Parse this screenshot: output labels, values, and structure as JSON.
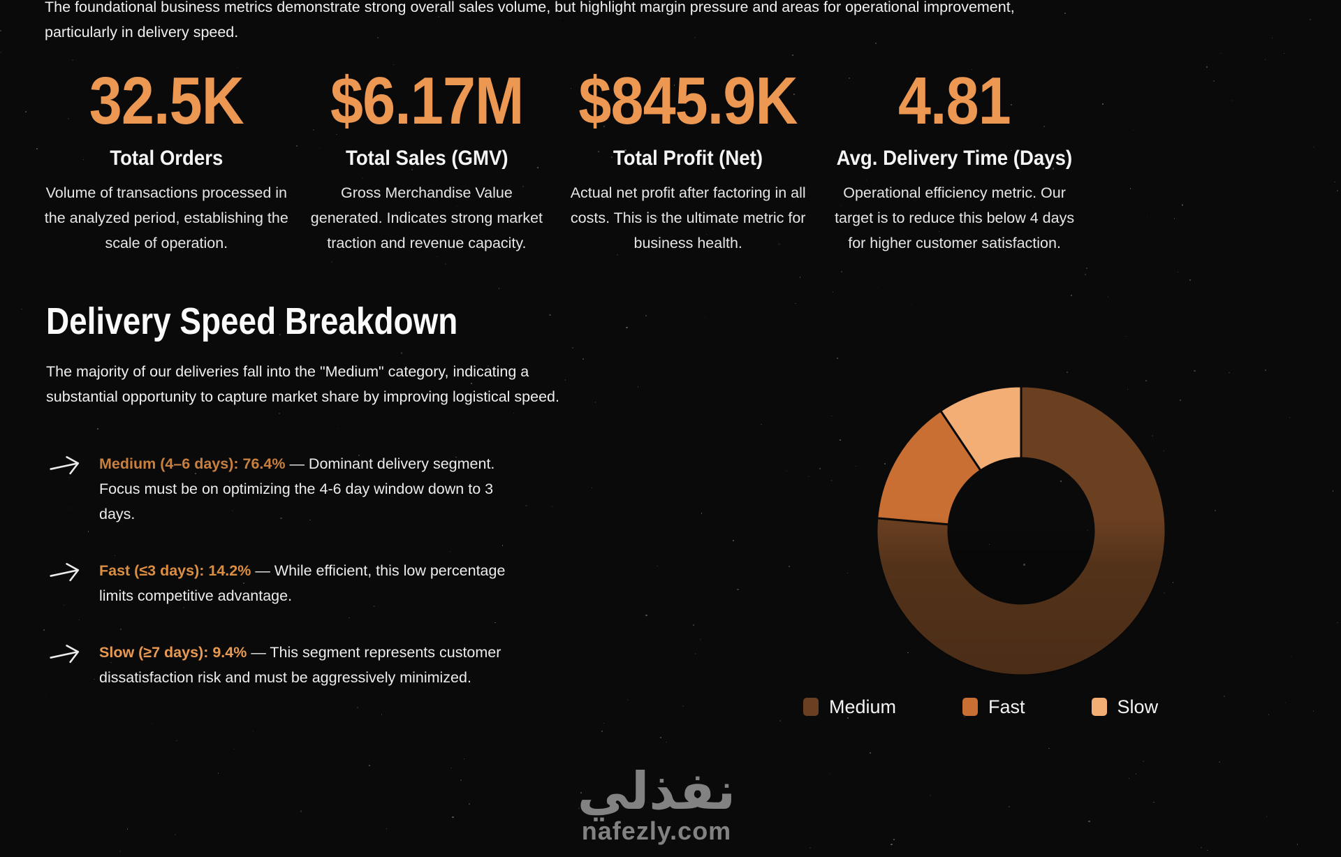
{
  "page": {
    "background": "#0a0a0b",
    "text_color": "#ededed"
  },
  "intro": {
    "text": "The foundational business metrics demonstrate strong overall sales volume, but highlight margin pressure and areas for operational improvement, particularly in delivery speed."
  },
  "accent": {
    "kpi_number_color": "#ec9853"
  },
  "kpis": [
    {
      "value": "32.5K",
      "label": "Total Orders",
      "description": "Volume of transactions processed in the analyzed period, establishing the scale of operation."
    },
    {
      "value": "$6.17M",
      "label": "Total Sales (GMV)",
      "description": "Gross Merchandise Value generated. Indicates strong market traction and revenue capacity."
    },
    {
      "value": "$845.9K",
      "label": "Total Profit (Net)",
      "description": "Actual net profit after factoring in all costs. This is the ultimate metric for business health."
    },
    {
      "value": "4.81",
      "label": "Avg. Delivery Time (Days)",
      "description": "Operational efficiency metric. Our target is to reduce this below 4 days for higher customer satisfaction."
    }
  ],
  "section": {
    "title": "Delivery Speed Breakdown",
    "paragraph": "The majority of our deliveries fall into the \"Medium\" category, indicating a substantial opportunity to capture market share by improving logistical speed.",
    "bullets": [
      {
        "highlight": "Medium (4–6 days): 76.4%",
        "highlight_color": "#c9803f",
        "text": " — Dominant delivery segment. Focus must be on optimizing the 4-6 day window down to 3 days."
      },
      {
        "highlight": "Fast (≤3 days): 14.2%",
        "highlight_color": "#dc8e41",
        "text": " — While efficient, this low percentage limits competitive advantage."
      },
      {
        "highlight": "Slow (≥7 days): 9.4%",
        "highlight_color": "#e89a52",
        "text": " — This segment represents customer dissatisfaction risk and must be aggressively minimized."
      }
    ]
  },
  "chart_data": {
    "type": "pie",
    "variant": "donut",
    "title": "Delivery Speed Breakdown",
    "labels": [
      "Medium",
      "Fast",
      "Slow"
    ],
    "values": [
      76.4,
      14.2,
      9.4
    ],
    "unit": "%",
    "colors": [
      "#6b4021",
      "#c96f33",
      "#f3ae76"
    ],
    "start_angle_deg": 0,
    "direction": "clockwise",
    "inner_radius_ratio": 0.5,
    "legend_position": "bottom"
  },
  "watermark": {
    "arabic": "نفذلي",
    "domain": "nafezly.com",
    "color": "#8d8d8d"
  }
}
